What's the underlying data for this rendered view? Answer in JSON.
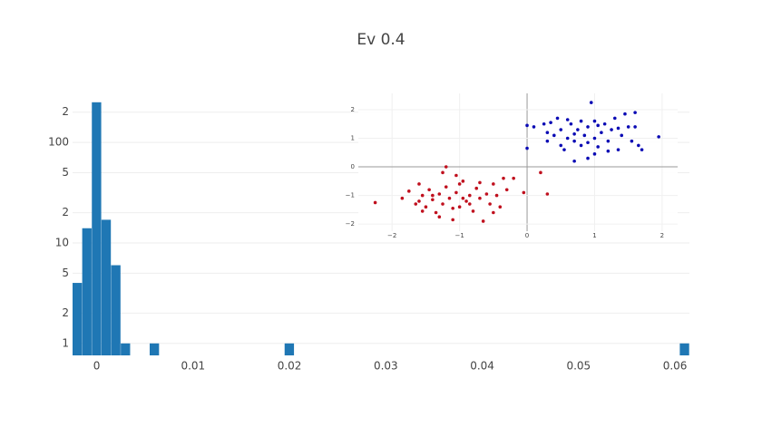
{
  "title": "Ev 0.4",
  "chart_data": [
    {
      "type": "histogram",
      "color": "#1f77b4",
      "log_y": true,
      "grid": true,
      "bins": [
        -0.0025,
        -0.0015,
        -0.0005,
        0.0005,
        0.0015,
        0.0025,
        0.0035,
        0.0045,
        0.0055,
        0.0065,
        0.0075,
        0.0085,
        0.0095,
        0.0105,
        0.0115,
        0.0125,
        0.0135,
        0.0145,
        0.0155,
        0.0165,
        0.0175,
        0.0185,
        0.0195,
        0.0205,
        0.0215,
        0.0225,
        0.0235,
        0.0245,
        0.0255,
        0.0265,
        0.0275,
        0.0285,
        0.0295,
        0.0305,
        0.0315,
        0.0325,
        0.0335,
        0.0345,
        0.0355,
        0.0365,
        0.0375,
        0.0385,
        0.0395,
        0.0405,
        0.0415,
        0.0425,
        0.0435,
        0.0445,
        0.0455,
        0.0465,
        0.0475,
        0.0485,
        0.0495,
        0.0505,
        0.0515,
        0.0525,
        0.0535,
        0.0545,
        0.0555,
        0.0565,
        0.0575,
        0.0585,
        0.0595,
        0.0605,
        0.0615
      ],
      "values": [
        4,
        14,
        251,
        17,
        6,
        1,
        0,
        0,
        1,
        0,
        0,
        0,
        0,
        0,
        0,
        0,
        0,
        0,
        0,
        0,
        0,
        0,
        1,
        0,
        0,
        0,
        0,
        0,
        0,
        0,
        0,
        0,
        0,
        0,
        0,
        0,
        0,
        0,
        0,
        0,
        0,
        0,
        0,
        0,
        0,
        0,
        0,
        0,
        0,
        0,
        0,
        0,
        0,
        0,
        0,
        0,
        0,
        0,
        0,
        0,
        0,
        0,
        0,
        1
      ],
      "xlim": [
        -0.0025,
        0.0615
      ],
      "xticks": [
        0,
        0.01,
        0.02,
        0.03,
        0.04,
        0.05,
        0.06
      ],
      "ylim": [
        0.76,
        250
      ],
      "yticks": [
        1,
        2,
        5,
        10,
        {
          "value": 20,
          "label": "2"
        },
        {
          "value": 50,
          "label": "5"
        },
        100,
        {
          "value": 200,
          "label": "2"
        }
      ]
    },
    {
      "type": "scatter",
      "grid": true,
      "zeroline": true,
      "xlim": [
        -2.5,
        2.23
      ],
      "ylim": [
        -2.25,
        2.57
      ],
      "xticks": [
        {
          "value": -2,
          "label": "−2"
        },
        {
          "value": -1,
          "label": "−1"
        },
        0,
        1,
        2
      ],
      "yticks": [
        {
          "value": -2,
          "label": "−2"
        },
        {
          "value": -1,
          "label": "−1"
        },
        0,
        1,
        2
      ],
      "series": [
        {
          "color": "#0a0ab4",
          "x": [
            0.0,
            0.0,
            0.1,
            0.25,
            0.3,
            0.3,
            0.4,
            0.45,
            0.5,
            0.55,
            0.6,
            0.65,
            0.7,
            0.7,
            0.75,
            0.8,
            0.85,
            0.9,
            0.9,
            0.95,
            1.0,
            1.0,
            1.05,
            1.1,
            1.15,
            1.2,
            1.25,
            1.3,
            1.35,
            1.4,
            1.45,
            1.5,
            1.55,
            1.6,
            1.65,
            1.7,
            1.95,
            0.6,
            0.8,
            1.2,
            0.5,
            1.05,
            0.7,
            1.35,
            0.35,
            1.0,
            1.6,
            0.9
          ],
          "y": [
            0.65,
            1.45,
            1.4,
            1.5,
            1.2,
            0.9,
            1.1,
            1.7,
            1.3,
            0.6,
            1.0,
            1.5,
            0.2,
            0.9,
            1.3,
            1.6,
            1.1,
            0.3,
            1.4,
            2.25,
            1.0,
            1.6,
            0.7,
            1.2,
            1.5,
            0.9,
            1.3,
            1.7,
            0.6,
            1.1,
            1.85,
            1.4,
            0.9,
            1.9,
            0.75,
            0.6,
            1.05,
            1.65,
            0.75,
            0.55,
            0.75,
            1.45,
            1.15,
            1.35,
            1.55,
            0.45,
            1.4,
            0.85
          ]
        },
        {
          "color": "#c0101e",
          "x": [
            -2.25,
            -1.85,
            -1.75,
            -1.65,
            -1.6,
            -1.55,
            -1.5,
            -1.45,
            -1.4,
            -1.35,
            -1.3,
            -1.25,
            -1.2,
            -1.15,
            -1.1,
            -1.05,
            -1.0,
            -0.95,
            -0.9,
            -0.85,
            -0.8,
            -0.75,
            -0.7,
            -0.65,
            -0.6,
            -0.55,
            -0.5,
            -0.45,
            -0.4,
            -0.3,
            -0.2,
            -0.05,
            0.2,
            0.3,
            -1.2,
            -1.25,
            -1.55,
            -1.0,
            -1.1,
            -0.85,
            -0.7,
            -1.4,
            -1.6,
            -0.95,
            -1.3,
            -0.5,
            -0.35,
            -1.05
          ],
          "y": [
            -1.25,
            -1.1,
            -0.85,
            -1.3,
            -0.6,
            -1.0,
            -1.4,
            -0.8,
            -1.15,
            -1.6,
            -0.95,
            -1.3,
            -0.7,
            -1.1,
            -1.85,
            -0.9,
            -1.4,
            -0.5,
            -1.2,
            -1.0,
            -1.55,
            -0.75,
            -1.1,
            -1.9,
            -0.95,
            -1.3,
            -0.6,
            -1.0,
            -1.4,
            -0.8,
            -0.4,
            -0.9,
            -0.2,
            -0.95,
            0.0,
            -0.2,
            -1.55,
            -0.6,
            -1.45,
            -1.3,
            -0.55,
            -1.0,
            -1.2,
            -1.1,
            -1.75,
            -1.6,
            -0.4,
            -0.3
          ]
        }
      ]
    }
  ]
}
